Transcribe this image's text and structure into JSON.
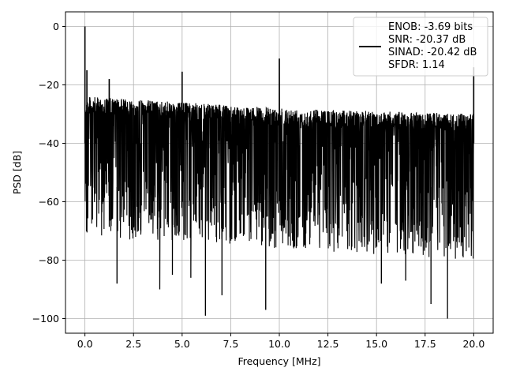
{
  "chart_data": {
    "type": "line",
    "title": "",
    "xlabel": "Frequency [MHz]",
    "ylabel": "PSD [dB]",
    "xlim": [
      -1.0,
      21.0
    ],
    "ylim": [
      -105,
      5
    ],
    "xticks": [
      0.0,
      2.5,
      5.0,
      7.5,
      10.0,
      12.5,
      15.0,
      17.5,
      20.0
    ],
    "xtick_labels": [
      "0.0",
      "2.5",
      "5.0",
      "7.5",
      "10.0",
      "12.5",
      "15.0",
      "17.5",
      "20.0"
    ],
    "yticks": [
      0,
      -20,
      -40,
      -60,
      -80,
      -100
    ],
    "ytick_labels": [
      "0",
      "−20",
      "−40",
      "−60",
      "−80",
      "−100"
    ],
    "grid": true,
    "legend_position": "top-right",
    "legend": [
      "ENOB: -3.69 bits",
      "SNR: -20.37 dB",
      "SINAD: -20.42 dB",
      "SFDR: 1.14"
    ],
    "series": [
      {
        "color": "#000000",
        "description_of_shape": "dense noise band",
        "noise_band_top": [
          [
            0.0,
            -24
          ],
          [
            5.0,
            -26
          ],
          [
            10.0,
            -28
          ],
          [
            15.0,
            -29
          ],
          [
            20.0,
            -30
          ]
        ],
        "noise_band_bottom": [
          [
            0.0,
            -60
          ],
          [
            20.0,
            -68
          ]
        ],
        "spikes": [
          {
            "x": 0.0,
            "y": 0
          },
          {
            "x": 0.1,
            "y": -15
          },
          {
            "x": 1.25,
            "y": -18
          },
          {
            "x": 5.0,
            "y": -15.5
          },
          {
            "x": 10.0,
            "y": -11
          },
          {
            "x": 20.0,
            "y": -14
          }
        ],
        "dips": [
          {
            "x": 1.65,
            "y": -88
          },
          {
            "x": 3.85,
            "y": -90
          },
          {
            "x": 4.5,
            "y": -85
          },
          {
            "x": 5.45,
            "y": -86
          },
          {
            "x": 6.2,
            "y": -99
          },
          {
            "x": 7.05,
            "y": -92
          },
          {
            "x": 9.3,
            "y": -97
          },
          {
            "x": 15.25,
            "y": -88
          },
          {
            "x": 16.5,
            "y": -87
          },
          {
            "x": 17.8,
            "y": -95
          },
          {
            "x": 18.65,
            "y": -100
          }
        ]
      }
    ]
  }
}
